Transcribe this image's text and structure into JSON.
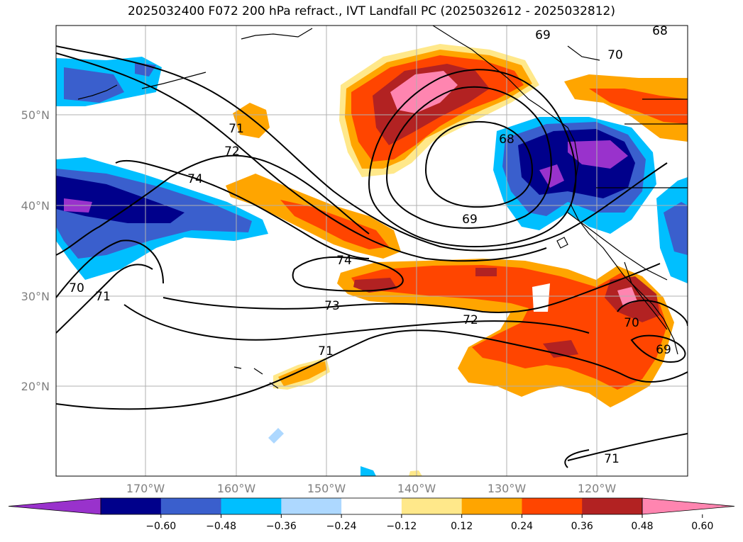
{
  "title": "2025032400 F072 200 hPa refract., IVT Landfall PC (2025032612 - 2025032812)",
  "latitude_labels": [
    "50°N",
    "40°N",
    "30°N",
    "20°N"
  ],
  "longitude_labels": [
    "170°W",
    "160°W",
    "150°W",
    "140°W",
    "130°W",
    "120°W"
  ],
  "colorbar": {
    "colors": [
      "#9932cc",
      "#00008b",
      "#3a5fcd",
      "#00bfff",
      "#add8ff",
      "#ffffff",
      "#ffe88a",
      "#ffa500",
      "#ff4500",
      "#b22222",
      "#ff85b0"
    ],
    "tick_labels": [
      "−0.60",
      "−0.48",
      "−0.36",
      "−0.24",
      "−0.12",
      "0.12",
      "0.24",
      "0.36",
      "0.48",
      "0.60"
    ]
  },
  "contour_labels": [
    "68",
    "69",
    "70",
    "71",
    "72",
    "74",
    "68",
    "69",
    "74",
    "73",
    "72",
    "71",
    "70",
    "71",
    "70",
    "69",
    "71"
  ]
}
